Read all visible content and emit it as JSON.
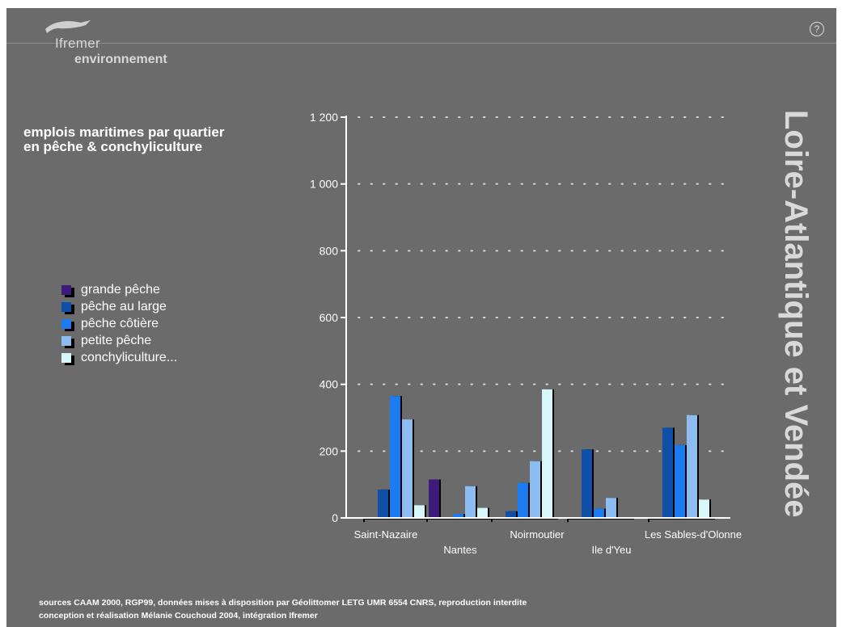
{
  "header": {
    "logo_name": "Ifremer",
    "logo_sub": "environnement",
    "help_symbol": "?"
  },
  "region_title": "Loire-Atlantique et Vendée",
  "footer": {
    "line1": "sources CAAM 2000, RGP99, données mises à disposition par Géolittomer LETG UMR 6554 CNRS, reproduction interdite",
    "line2": "conception et réalisation Mélanie Couchoud 2004, intégration Ifremer"
  },
  "colors": {
    "background": "#6b6b6b",
    "grande_peche": "#3e1a7a",
    "peche_au_large": "#0f4fa8",
    "peche_cotiere": "#1a7cf0",
    "petite_peche": "#8cbcf0",
    "conchyliculture": "#d8f7f8"
  },
  "chart_data": {
    "type": "bar",
    "title_lines": [
      "emplois maritimes par quartier",
      "en pêche & conchyliculture"
    ],
    "xlabel": "",
    "ylabel": "",
    "ylim": [
      0,
      1200
    ],
    "yticks": [
      0,
      200,
      400,
      600,
      800,
      1000,
      1200
    ],
    "ytick_labels": [
      "0",
      "200",
      "400",
      "600",
      "800",
      "1 000",
      "1 200"
    ],
    "grid": true,
    "legend_position": "left",
    "categories": [
      "Saint-Nazaire",
      "Nantes",
      "Noirmoutier",
      "Ile d'Yeu",
      "Les Sables-d'Olonne"
    ],
    "series": [
      {
        "name": "grande pêche",
        "color": "#3e1a7a",
        "values": [
          0,
          115,
          0,
          0,
          0
        ]
      },
      {
        "name": "pêche au large",
        "color": "#0f4fa8",
        "values": [
          85,
          0,
          20,
          205,
          270
        ]
      },
      {
        "name": "pêche côtière",
        "color": "#1a7cf0",
        "values": [
          365,
          12,
          105,
          28,
          218
        ]
      },
      {
        "name": "petite pêche",
        "color": "#8cbcf0",
        "values": [
          295,
          95,
          170,
          60,
          308
        ]
      },
      {
        "name": "conchyliculture...",
        "color": "#d8f7f8",
        "values": [
          38,
          30,
          385,
          0,
          55
        ]
      }
    ]
  }
}
